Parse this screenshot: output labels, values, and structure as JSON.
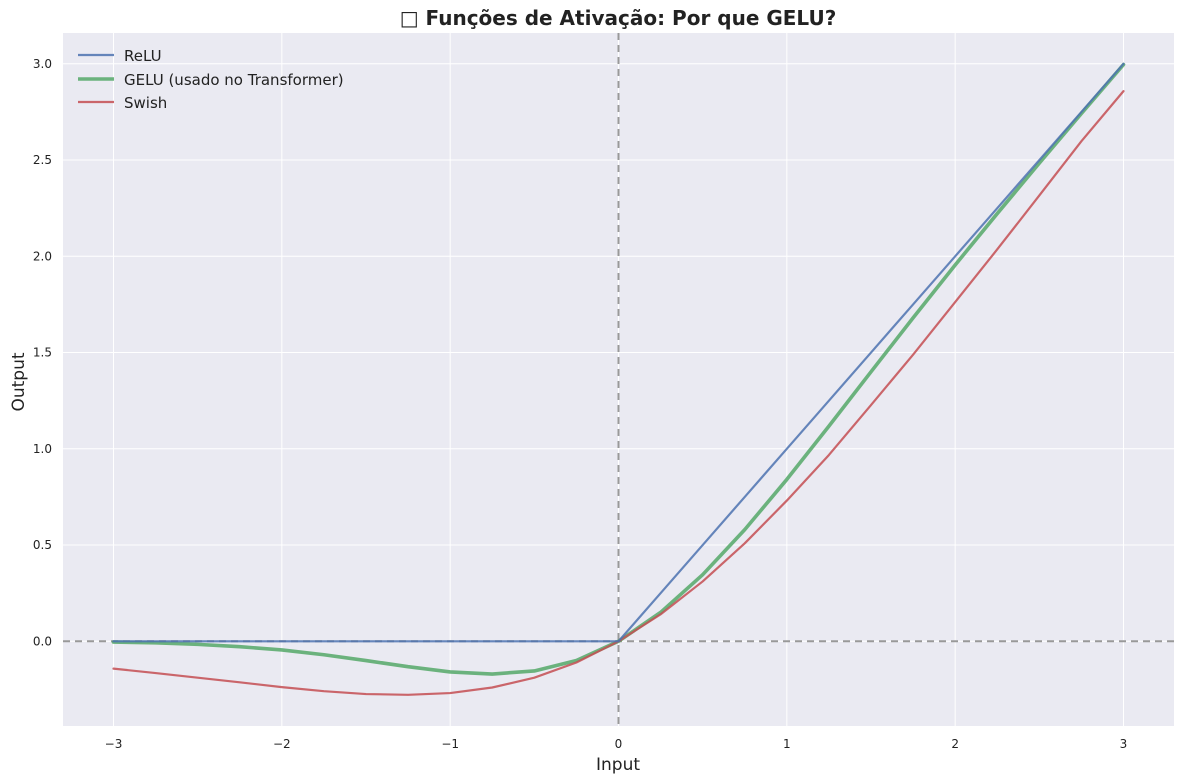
{
  "chart_data": {
    "type": "line",
    "title": "□ Funções de Ativação: Por que GELU?",
    "xlabel": "Input",
    "ylabel": "Output",
    "xlim": [
      -3.3,
      3.3
    ],
    "ylim": [
      -0.44,
      3.16
    ],
    "xticks": [
      -3,
      -2,
      -1,
      0,
      1,
      2,
      3
    ],
    "xtick_labels": [
      "−3",
      "−2",
      "−1",
      "0",
      "1",
      "2",
      "3"
    ],
    "yticks": [
      0.0,
      0.5,
      1.0,
      1.5,
      2.0,
      2.5,
      3.0
    ],
    "ytick_labels": [
      "0.0",
      "0.5",
      "1.0",
      "1.5",
      "2.0",
      "2.5",
      "3.0"
    ],
    "grid": true,
    "legend_position": "top-left",
    "background_color": "#eaeaf2",
    "reference_lines": [
      {
        "axis": "y",
        "value": 0,
        "style": "dashed",
        "color": "#999999"
      },
      {
        "axis": "x",
        "value": 0,
        "style": "dashed",
        "color": "#999999"
      }
    ],
    "x": [
      -3.0,
      -2.75,
      -2.5,
      -2.25,
      -2.0,
      -1.75,
      -1.5,
      -1.25,
      -1.0,
      -0.75,
      -0.5,
      -0.25,
      0.0,
      0.25,
      0.5,
      0.75,
      1.0,
      1.25,
      1.5,
      1.75,
      2.0,
      2.25,
      2.5,
      2.75,
      3.0
    ],
    "series": [
      {
        "name": "ReLU",
        "color": "#4c72b0",
        "width": 2.2,
        "values": [
          0,
          0,
          0,
          0,
          0,
          0,
          0,
          0,
          0,
          0,
          0,
          0,
          0,
          0.25,
          0.5,
          0.75,
          1.0,
          1.25,
          1.5,
          1.75,
          2.0,
          2.25,
          2.5,
          2.75,
          3.0
        ]
      },
      {
        "name": "GELU (usado no Transformer)",
        "color": "#55a868",
        "width": 3.6,
        "values": [
          -0.004,
          -0.008,
          -0.016,
          -0.028,
          -0.045,
          -0.07,
          -0.1,
          -0.132,
          -0.159,
          -0.17,
          -0.154,
          -0.1,
          0.0,
          0.15,
          0.346,
          0.58,
          0.841,
          1.118,
          1.4,
          1.68,
          1.955,
          2.222,
          2.484,
          2.742,
          2.996
        ]
      },
      {
        "name": "Swish",
        "color": "#c44e52",
        "width": 2.2,
        "values": [
          -0.142,
          -0.165,
          -0.189,
          -0.213,
          -0.238,
          -0.259,
          -0.274,
          -0.278,
          -0.269,
          -0.24,
          -0.189,
          -0.11,
          0.0,
          0.14,
          0.311,
          0.509,
          0.731,
          0.968,
          1.227,
          1.489,
          1.762,
          2.036,
          2.316,
          2.598,
          2.858
        ]
      }
    ]
  }
}
